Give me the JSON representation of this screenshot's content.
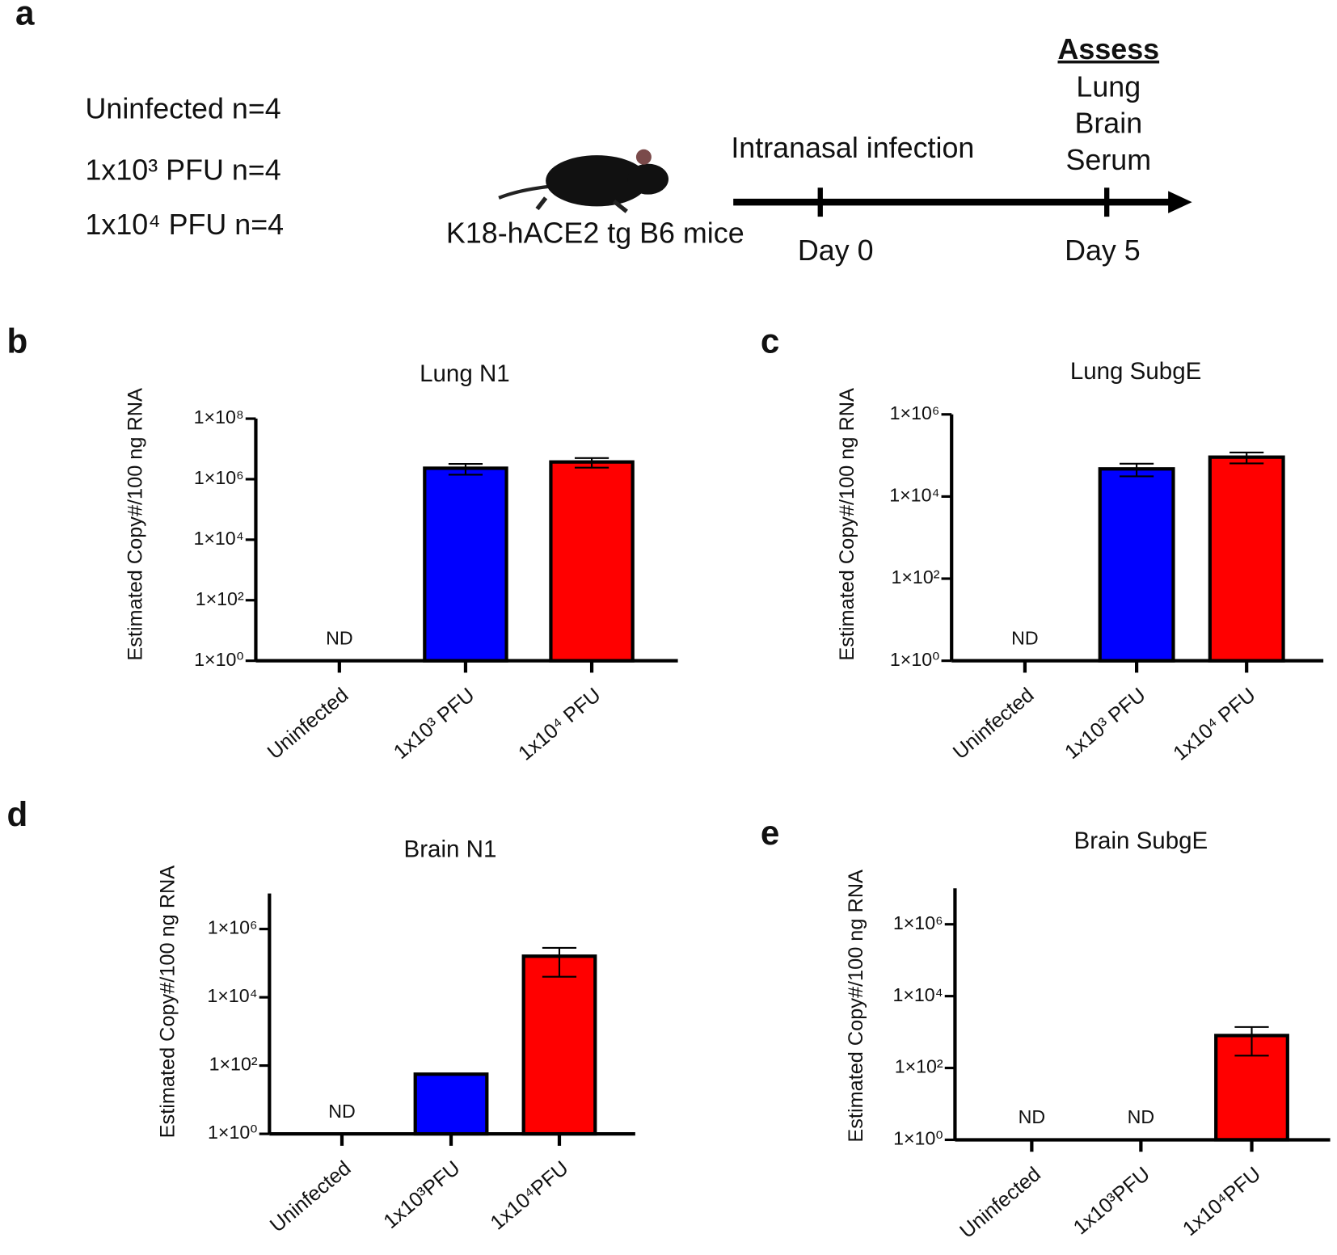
{
  "schematic": {
    "panel": "a",
    "groups": [
      "Uninfected n=4",
      "1x10³ PFU n=4",
      "1x10⁴ PFU n=4"
    ],
    "mouse_label": "K18-hACE2 tg B6 mice",
    "route": "Intranasal infection",
    "day_start": "Day 0",
    "day_end": "Day 5",
    "assess_title": "Assess",
    "assess_items": [
      "Lung",
      "Brain",
      "Serum"
    ]
  },
  "chart_data": [
    {
      "type": "bar",
      "panel": "b",
      "title": "Lung N1",
      "y_label": "Estimated Copy#/100 ng RNA",
      "log": true,
      "categories": [
        "Uninfected",
        "1x10³ PFU",
        "1x10⁴ PFU"
      ],
      "values": [
        null,
        2300000,
        3700000
      ],
      "errors": [
        null,
        900000,
        1300000
      ],
      "value_labels": [
        "ND",
        null,
        null
      ],
      "colors": [
        "#0000ff",
        "#0000ff",
        "#ff0000"
      ],
      "ylim": [
        1,
        100000000
      ],
      "yticks": [
        {
          "value": 1,
          "label": "1×10⁰"
        },
        {
          "value": 100,
          "label": "1×10²"
        },
        {
          "value": 10000,
          "label": "1×10⁴"
        },
        {
          "value": 1000000,
          "label": "1×10⁶"
        },
        {
          "value": 100000000,
          "label": "1×10⁸"
        }
      ]
    },
    {
      "type": "bar",
      "panel": "c",
      "title": "Lung SubgE",
      "y_label": "Estimated Copy#/100 ng RNA",
      "log": true,
      "categories": [
        "Uninfected",
        "1x10³ PFU",
        "1x10⁴ PFU"
      ],
      "values": [
        null,
        47000,
        91000
      ],
      "errors": [
        null,
        16000,
        27000
      ],
      "value_labels": [
        "ND",
        null,
        null
      ],
      "colors": [
        "#0000ff",
        "#0000ff",
        "#ff0000"
      ],
      "ylim": [
        1,
        1000000
      ],
      "yticks": [
        {
          "value": 1,
          "label": "1×10⁰"
        },
        {
          "value": 100,
          "label": "1×10²"
        },
        {
          "value": 10000,
          "label": "1×10⁴"
        },
        {
          "value": 1000000,
          "label": "1×10⁶"
        }
      ]
    },
    {
      "type": "bar",
      "panel": "d",
      "title": "Brain N1",
      "y_label": "Estimated Copy#/100 ng RNA",
      "log": true,
      "categories": [
        "Uninfected",
        "1x10³PFU",
        "1x10⁴PFU"
      ],
      "values": [
        null,
        56,
        160000
      ],
      "errors": [
        null,
        null,
        120000
      ],
      "value_labels": [
        "ND",
        null,
        null
      ],
      "colors": [
        "#0000ff",
        "#0000ff",
        "#ff0000"
      ],
      "ylim": [
        1,
        11000000
      ],
      "yticks": [
        {
          "value": 1,
          "label": "1×10⁰"
        },
        {
          "value": 100,
          "label": "1×10²"
        },
        {
          "value": 10000,
          "label": "1×10⁴"
        },
        {
          "value": 1000000,
          "label": "1×10⁶"
        }
      ]
    },
    {
      "type": "bar",
      "panel": "e",
      "title": "Brain SubgE",
      "y_label": "Estimated Copy#/100 ng RNA",
      "log": true,
      "categories": [
        "Uninfected",
        "1x10³PFU",
        "1x10⁴PFU"
      ],
      "values": [
        null,
        null,
        800
      ],
      "errors": [
        null,
        null,
        580
      ],
      "value_labels": [
        "ND",
        "ND",
        null
      ],
      "colors": [
        "#0000ff",
        "#0000ff",
        "#ff0000"
      ],
      "ylim": [
        1,
        10000000
      ],
      "yticks": [
        {
          "value": 1,
          "label": "1×10⁰"
        },
        {
          "value": 100,
          "label": "1×10²"
        },
        {
          "value": 10000,
          "label": "1×10⁴"
        },
        {
          "value": 1000000,
          "label": "1×10⁶"
        }
      ]
    }
  ]
}
